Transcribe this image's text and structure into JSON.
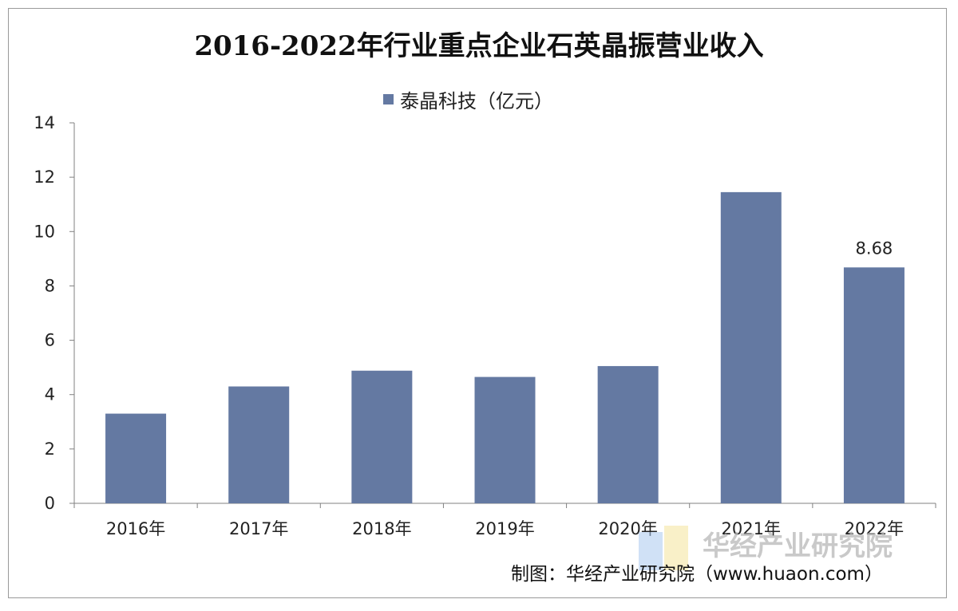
{
  "chart_data": {
    "type": "bar",
    "title": "2016-2022年行业重点企业石英晶振营业收入",
    "categories": [
      "2016年",
      "2017年",
      "2018年",
      "2019年",
      "2020年",
      "2021年",
      "2022年"
    ],
    "series": [
      {
        "name": "泰晶科技（亿元）",
        "values": [
          3.3,
          4.3,
          4.88,
          4.65,
          5.05,
          11.45,
          8.68
        ],
        "color": "#6479a2"
      }
    ],
    "data_labels": [
      {
        "index": 6,
        "text": "8.68"
      }
    ],
    "ylim": [
      0,
      14
    ],
    "yticks": [
      "0",
      "2",
      "4",
      "6",
      "8",
      "10",
      "12",
      "14"
    ],
    "grid": false,
    "legend": "top-center"
  },
  "credit": "制图：华经产业研究院（www.huaon.com）",
  "watermark": "华经产业研究院"
}
